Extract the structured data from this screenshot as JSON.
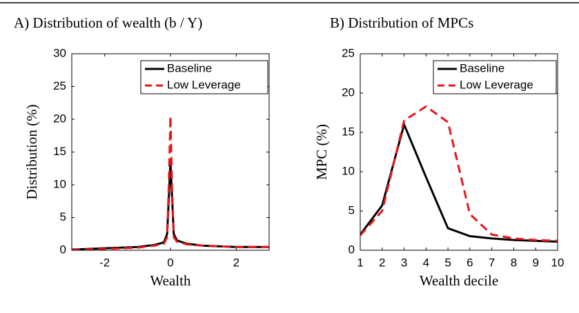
{
  "chart_data": [
    {
      "type": "line",
      "title": "A) Distribution of wealth (b / Y)",
      "xlabel": "Wealth",
      "ylabel": "Distribution (%)",
      "x": [
        -3,
        -2,
        -1,
        -0.5,
        -0.2,
        -0.1,
        -0.05,
        0,
        0.05,
        0.1,
        0.2,
        0.5,
        1,
        2,
        3
      ],
      "series": [
        {
          "name": "Baseline",
          "color": "#000000",
          "dash": false,
          "values": [
            0.1,
            0.3,
            0.5,
            0.8,
            1.2,
            2.5,
            8,
            13.5,
            8,
            2.5,
            1.5,
            1.0,
            0.7,
            0.5,
            0.5
          ]
        },
        {
          "name": "Low Leverage",
          "color": "#e8141c",
          "dash": true,
          "values": [
            0.05,
            0.2,
            0.4,
            0.7,
            1.0,
            2.0,
            10,
            20.5,
            9,
            2.0,
            1.3,
            0.9,
            0.7,
            0.5,
            0.5
          ]
        }
      ],
      "xlim": [
        -3,
        3
      ],
      "xticks": [
        -2,
        0,
        2
      ],
      "ylim": [
        0,
        30
      ],
      "yticks": [
        0,
        5,
        10,
        15,
        20,
        25,
        30
      ]
    },
    {
      "type": "line",
      "title": "B) Distribution of MPCs",
      "xlabel": "Wealth decile",
      "ylabel": "MPC (%)",
      "x": [
        1,
        2,
        3,
        4,
        5,
        6,
        7,
        8,
        9,
        10
      ],
      "series": [
        {
          "name": "Baseline",
          "color": "#000000",
          "dash": false,
          "values": [
            2.0,
            5.7,
            16.0,
            9.3,
            2.8,
            1.8,
            1.5,
            1.3,
            1.2,
            1.1
          ]
        },
        {
          "name": "Low Leverage",
          "color": "#e8141c",
          "dash": true,
          "values": [
            1.9,
            5.0,
            16.5,
            18.3,
            16.3,
            4.6,
            2.0,
            1.5,
            1.3,
            1.2
          ]
        }
      ],
      "xlim": [
        1,
        10
      ],
      "xticks": [
        1,
        2,
        3,
        4,
        5,
        6,
        7,
        8,
        9,
        10
      ],
      "ylim": [
        0,
        25
      ],
      "yticks": [
        0,
        5,
        10,
        15,
        20,
        25
      ]
    }
  ]
}
